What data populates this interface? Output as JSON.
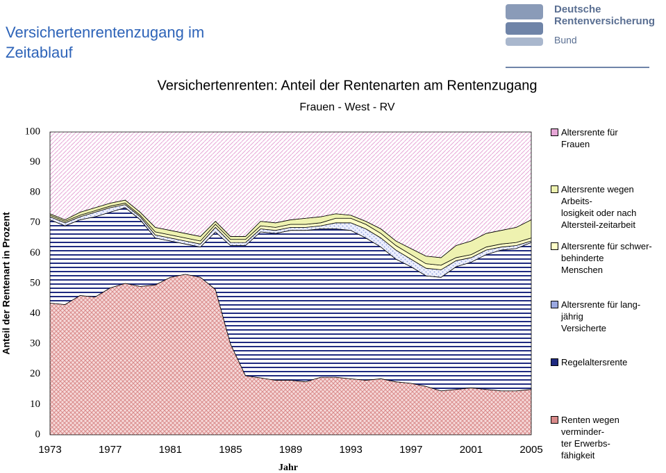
{
  "header": {
    "title": "Versichertenrentenzugang im\nZeitablauf",
    "logo": [
      "Deutsche",
      "Rentenversicherung",
      "Bund"
    ]
  },
  "chart_data": {
    "type": "stacked-area",
    "title": "Versichertenrenten: Anteil der Rentenarten am Rentenzugang",
    "subtitle": "Frauen - West - RV",
    "xlabel": "Jahr",
    "ylabel": "Anteil der Rentenart in Prozent",
    "x": [
      1973,
      1974,
      1975,
      1976,
      1977,
      1978,
      1979,
      1980,
      1981,
      1982,
      1983,
      1984,
      1985,
      1986,
      1987,
      1988,
      1989,
      1990,
      1991,
      1992,
      1993,
      1994,
      1995,
      1996,
      1997,
      1998,
      1999,
      2000,
      2001,
      2002,
      2003,
      2004,
      2005
    ],
    "xlim": [
      1973,
      2005
    ],
    "xticks": [
      1973,
      1977,
      1981,
      1985,
      1989,
      1993,
      1997,
      2001,
      2005
    ],
    "ylim": [
      0,
      100
    ],
    "yticks": [
      0,
      10,
      20,
      30,
      40,
      50,
      60,
      70,
      80,
      90,
      100
    ],
    "series": [
      {
        "name": "Renten wegen\nverminder-\nter Erwerbs-\nfähigkeit",
        "color": "#d98a8a",
        "pattern": "crosshatch",
        "values": [
          43.5,
          43,
          46,
          45.5,
          48.5,
          50,
          49,
          49.5,
          52,
          53,
          52,
          48,
          30,
          19.5,
          18.8,
          18,
          18,
          17.5,
          19,
          19,
          18.5,
          18,
          18.5,
          17.5,
          17,
          16,
          14.5,
          15,
          15.5,
          15,
          14.5,
          14.5,
          15
        ]
      },
      {
        "name": "Regelaltersrente",
        "color": "#1f2a80",
        "pattern": "horizontal",
        "values": [
          27.5,
          26,
          25,
          26.5,
          25,
          25,
          22,
          15.5,
          12,
          10,
          10,
          19,
          32.5,
          43,
          48.2,
          48.5,
          49.5,
          50,
          49,
          49,
          49,
          47,
          43.5,
          40.5,
          38.5,
          36.5,
          37.5,
          40.5,
          41.5,
          44.5,
          46.5,
          47,
          48.5
        ]
      },
      {
        "name": "Altersrente für lang-\njährig\nVersicherte",
        "color": "#9aa8e0",
        "pattern": "dots",
        "values": [
          1,
          1,
          1,
          1.5,
          1.5,
          1,
          1,
          1,
          1,
          1,
          1,
          1.5,
          1,
          1,
          1,
          1,
          1,
          1,
          1,
          2,
          2.5,
          3,
          3,
          3,
          2.5,
          2.5,
          2.5,
          2,
          1.5,
          1.5,
          1,
          1,
          0.5
        ]
      },
      {
        "name": "Altersrente für schwer-\nbehinderte\nMenschen",
        "color": "#ffffc8",
        "pattern": "solid",
        "values": [
          0.5,
          0.5,
          0.5,
          0.5,
          0.5,
          0.5,
          0.5,
          1,
          1,
          1,
          1,
          1,
          1,
          1,
          1,
          1,
          1,
          1,
          1,
          1.5,
          1.5,
          1.5,
          1.5,
          1.5,
          1.5,
          1.5,
          1.5,
          1,
          1,
          1,
          1,
          1,
          1
        ]
      },
      {
        "name": "Altersrente wegen\nArbeits-\nlosigkeit oder nach\nAltersteil-zeitarbeit",
        "color": "#eef2b0",
        "pattern": "solid",
        "values": [
          0.5,
          0.5,
          1,
          1,
          1,
          1,
          1,
          1.5,
          1.5,
          1.5,
          1.5,
          1,
          1,
          1,
          1.5,
          1.5,
          1.5,
          2,
          2,
          1.5,
          1,
          1,
          1.5,
          1.5,
          2,
          2.5,
          2.5,
          4,
          4.5,
          4.5,
          4.5,
          5,
          6
        ]
      },
      {
        "name": "Altersrente für\nFrauen",
        "color": "#e6a6d6",
        "pattern": "diagonal",
        "values": [
          27,
          29,
          26.5,
          25,
          23.5,
          22.5,
          26.5,
          31.5,
          32.5,
          33.5,
          34.5,
          29.5,
          34.5,
          34.5,
          29.5,
          30,
          29,
          28.5,
          28,
          27,
          27.5,
          29.5,
          32,
          36,
          38.5,
          41,
          41.5,
          37.5,
          36,
          33.5,
          32.5,
          31.5,
          29
        ]
      }
    ]
  }
}
